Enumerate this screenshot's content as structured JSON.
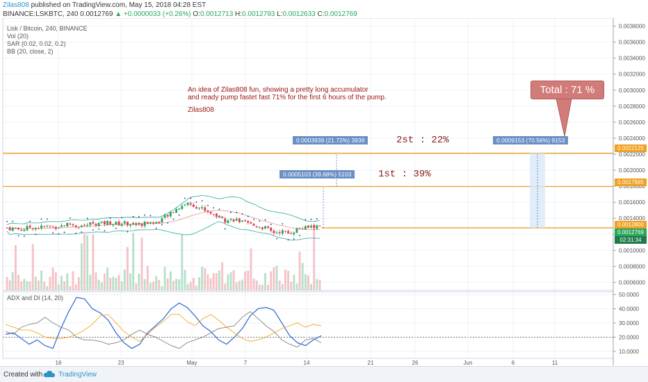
{
  "header": {
    "author": "Zilas808",
    "published": " published on TradingView.com, May 15, 2018 04:28 EST",
    "symbol_line": "BINANCE:LSKBTC, 240  0.0012769",
    "change": "▲ +0.0000033 (+0.26%)",
    "o_label": " O:",
    "o_value": "0.0012713",
    "h_label": " H:",
    "h_value": "0.0012793",
    "l_label": " L:",
    "l_value": "0.0012633",
    "c_label": " C:",
    "c_value": "0.0012769"
  },
  "indicators": {
    "title": "Lisk / Bitcoin, 240, BINANCE",
    "vol": "Vol (20)",
    "sar": "SAR (0.02, 0.02, 0.2)",
    "bb": "BB (20, close, 2)",
    "adx": "ADX and DI (14, 20)"
  },
  "annotations": {
    "note_line1": "An idea of Zilas808 fun, showing a pretty long accumulator",
    "note_line2": "and ready pump fastet fast 71% for the first 6 hours of the pump.",
    "note_author": "Zilas808",
    "total": "Total : 71 %",
    "first": "1st : 39%",
    "second": "2st : 22%",
    "measure_1": "0.0005103 (39.68%) 5103",
    "measure_2": "0.0003939 (21.72%) 3939",
    "measure_3": "0.0009153 (70.56%) 9153"
  },
  "price_tags": {
    "upper": "0.0022125",
    "middle": "0.0017965",
    "lower": "0.0012800",
    "last": "0.0012769",
    "countdown": "02:31:34"
  },
  "footer": {
    "created": "Created with",
    "brand": "TradingView"
  },
  "colors": {
    "up": "#26a65b",
    "down": "#e0424f",
    "orange": "#f0a020",
    "measure": "#6a8fc4",
    "adx": "#3a6fd8",
    "di_plus": "#f5a623",
    "di_minus": "#808080"
  },
  "chart_data": [
    {
      "type": "candlestick",
      "title": "Lisk / Bitcoin, 240, BINANCE",
      "symbol": "BINANCE:LSKBTC",
      "x_ticks": [
        "16",
        "23",
        "May",
        "7",
        "14",
        "21",
        "26",
        "Jun",
        "6",
        "11"
      ],
      "y_ticks": [
        "0.0038000",
        "0.0036000",
        "0.0034000",
        "0.0032000",
        "0.0030000",
        "0.0028000",
        "0.0026000",
        "0.0024000",
        "0.0022000",
        "0.0020000",
        "0.0018000",
        "0.0016000",
        "0.0014000",
        "0.0012000",
        "0.0010000",
        "0.0008000",
        "0.0006000"
      ],
      "ylim": [
        0.0005,
        0.0039
      ],
      "horizontal_levels": [
        0.0022125,
        0.0017965,
        0.00128
      ],
      "close_path": [
        0.00128,
        0.00127,
        0.00126,
        0.00129,
        0.00128,
        0.0013,
        0.00129,
        0.00131,
        0.00133,
        0.0013,
        0.00131,
        0.00134,
        0.00133,
        0.00135,
        0.00133,
        0.00134,
        0.00133,
        0.00132,
        0.00135,
        0.00134,
        0.0014,
        0.00146,
        0.00154,
        0.00159,
        0.00156,
        0.00152,
        0.00147,
        0.00142,
        0.00137,
        0.00139,
        0.00135,
        0.00132,
        0.0013,
        0.00128,
        0.00122,
        0.00124,
        0.00121,
        0.00126,
        0.00128,
        0.00129,
        0.0013
      ]
    },
    {
      "type": "line",
      "title": "ADX and DI (14, 20)",
      "y_ticks": [
        "50.0000",
        "40.0000",
        "30.0000",
        "20.0000",
        "10.0000"
      ],
      "ylim": [
        5,
        52
      ],
      "series": [
        {
          "name": "ADX",
          "values": [
            22,
            23,
            19,
            15,
            18,
            14,
            12,
            26,
            38,
            48,
            47,
            40,
            37,
            32,
            23,
            16,
            12,
            15,
            23,
            28,
            33,
            40,
            44,
            41,
            35,
            28,
            24,
            18,
            15,
            20,
            26,
            35,
            40,
            41,
            39,
            30,
            21,
            16,
            14,
            18,
            21
          ]
        },
        {
          "name": "DI+",
          "values": [
            29,
            27,
            25,
            25,
            23,
            20,
            19,
            19,
            20,
            22,
            25,
            29,
            35,
            36,
            30,
            24,
            20,
            17,
            22,
            27,
            31,
            36,
            36,
            31,
            28,
            33,
            36,
            32,
            27,
            23,
            19,
            17,
            18,
            20,
            23,
            26,
            28,
            30,
            27,
            29,
            28
          ]
        },
        {
          "name": "DI-",
          "values": [
            24,
            22,
            27,
            29,
            30,
            34,
            30,
            27,
            25,
            20,
            18,
            18,
            17,
            15,
            16,
            18,
            22,
            25,
            22,
            20,
            17,
            14,
            12,
            16,
            18,
            20,
            23,
            26,
            27,
            28,
            34,
            38,
            33,
            28,
            24,
            18,
            15,
            13,
            18,
            19,
            16
          ]
        }
      ]
    }
  ]
}
